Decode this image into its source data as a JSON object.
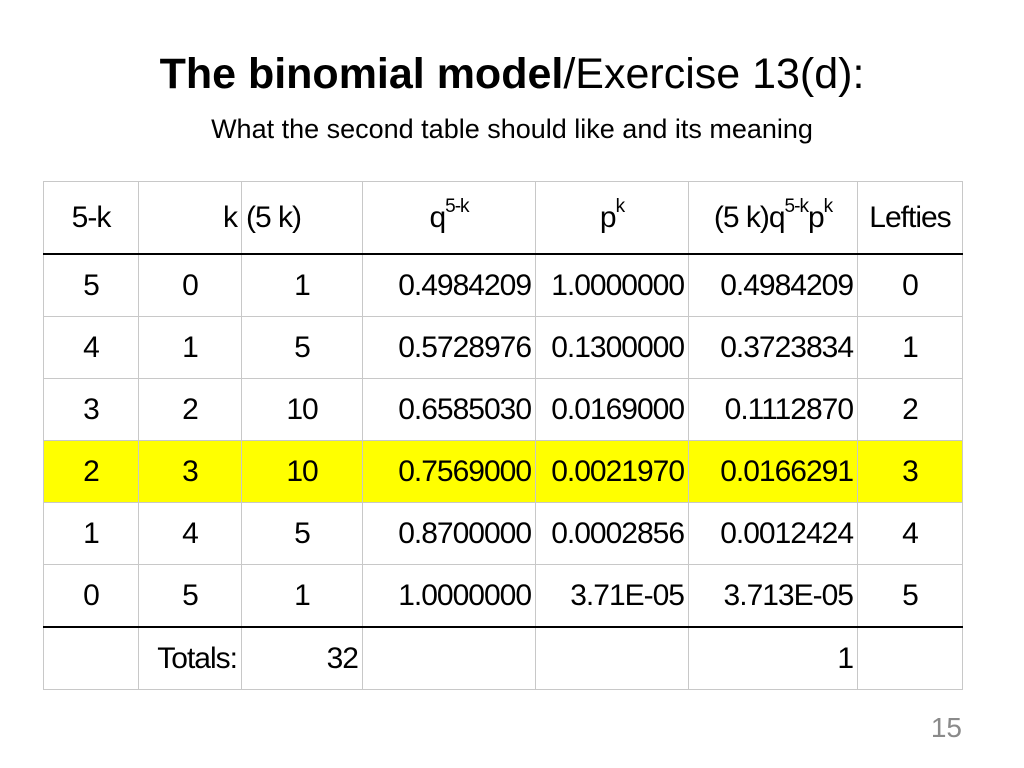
{
  "title": {
    "bold": "The binomial model",
    "rest": "/Exercise 13(d):"
  },
  "subtitle": "What the second table should like and its meaning",
  "table": {
    "headers": {
      "c1": "5-k",
      "c2": "k",
      "c3": "(5   k)",
      "c4_base": "q",
      "c4_sup": "5-k",
      "c5_base": "p",
      "c5_sup": "k",
      "c6_a": "(5 k)q",
      "c6_sup1": "5-k",
      "c6_b": "p",
      "c6_sup2": "k",
      "c7": "Lefties"
    },
    "rows": [
      [
        "5",
        "0",
        "1",
        "0.4984209",
        "1.0000000",
        "0.4984209",
        "0"
      ],
      [
        "4",
        "1",
        "5",
        "0.5728976",
        "0.1300000",
        "0.3723834",
        "1"
      ],
      [
        "3",
        "2",
        "10",
        "0.6585030",
        "0.0169000",
        "0.1112870",
        "2"
      ],
      [
        "2",
        "3",
        "10",
        "0.7569000",
        "0.0021970",
        "0.0166291",
        "3"
      ],
      [
        "1",
        "4",
        "5",
        "0.8700000",
        "0.0002856",
        "0.0012424",
        "4"
      ],
      [
        "0",
        "5",
        "1",
        "1.0000000",
        "3.71E-05",
        "3.713E-05",
        "5"
      ]
    ],
    "highlight_row_color": "#ffff00",
    "totals": {
      "label": "Totals:",
      "count": "32",
      "probability": "1"
    }
  },
  "page_number": "15"
}
